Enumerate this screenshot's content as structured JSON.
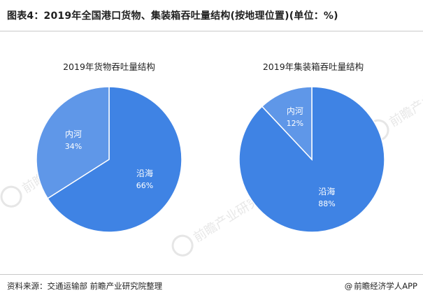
{
  "figure_title": "图表4：2019年全国港口货物、集装箱吞吐量结构(按地理位置)(单位：%)",
  "source_text": "资料来源：交通运输部 前瞻产业研究院整理",
  "credit_symbol": "@",
  "credit_text": "前瞻经济学人APP",
  "watermark_text": "前瞻产业研究院",
  "colors": {
    "inland": "#5f97e8",
    "coastal": "#3f83e4",
    "edge": "#ffffff"
  },
  "chart_data": [
    {
      "type": "pie",
      "title": "2019年货物吞吐量结构",
      "slices": [
        {
          "label": "沿海",
          "value": 66,
          "value_label": "66%",
          "color": "#3f83e4"
        },
        {
          "label": "内河",
          "value": 34,
          "value_label": "34%",
          "color": "#5f97e8"
        }
      ]
    },
    {
      "type": "pie",
      "title": "2019年集装箱吞吐量结构",
      "slices": [
        {
          "label": "沿海",
          "value": 88,
          "value_label": "88%",
          "color": "#3f83e4"
        },
        {
          "label": "内河",
          "value": 12,
          "value_label": "12%",
          "color": "#5f97e8"
        }
      ]
    }
  ]
}
